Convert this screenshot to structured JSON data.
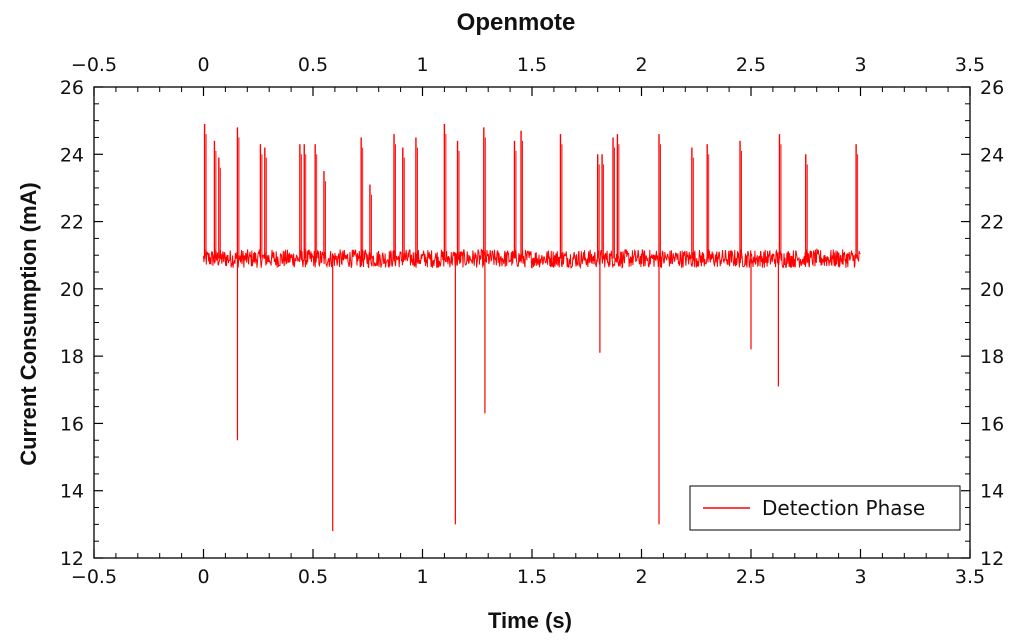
{
  "chart_data": {
    "type": "line",
    "title": "Openmote",
    "xlabel": "Time (s)",
    "ylabel": "Current Consumption (mA)",
    "xlim": [
      -0.5,
      3.5
    ],
    "ylim": [
      12,
      26
    ],
    "x_ticks": [
      -0.5,
      0,
      0.5,
      1,
      1.5,
      2,
      2.5,
      3,
      3.5
    ],
    "x_tick_labels": [
      "−0.5",
      "0",
      "0.5",
      "1",
      "1.5",
      "2",
      "2.5",
      "3",
      "3.5"
    ],
    "y_ticks": [
      12,
      14,
      16,
      18,
      20,
      22,
      24,
      26
    ],
    "y_tick_labels": [
      "12",
      "14",
      "16",
      "18",
      "20",
      "22",
      "24",
      "26"
    ],
    "grid": false,
    "legend_position": "bottom-right",
    "series": [
      {
        "name": "Detection Phase",
        "color": "#ff0000",
        "baseline": 20.9,
        "x_range": [
          0,
          3
        ],
        "peaks": [
          {
            "x": 0.005,
            "y": 24.9
          },
          {
            "x": 0.05,
            "y": 24.4
          },
          {
            "x": 0.07,
            "y": 23.9
          },
          {
            "x": 0.155,
            "y": 24.8
          },
          {
            "x": 0.26,
            "y": 24.3
          },
          {
            "x": 0.28,
            "y": 24.2
          },
          {
            "x": 0.44,
            "y": 24.3
          },
          {
            "x": 0.46,
            "y": 24.3
          },
          {
            "x": 0.51,
            "y": 24.3
          },
          {
            "x": 0.55,
            "y": 23.5
          },
          {
            "x": 0.72,
            "y": 24.5
          },
          {
            "x": 0.76,
            "y": 23.1
          },
          {
            "x": 0.87,
            "y": 24.6
          },
          {
            "x": 0.91,
            "y": 24.2
          },
          {
            "x": 0.97,
            "y": 24.5
          },
          {
            "x": 1.1,
            "y": 24.9
          },
          {
            "x": 1.16,
            "y": 24.4
          },
          {
            "x": 1.28,
            "y": 24.8
          },
          {
            "x": 1.42,
            "y": 24.4
          },
          {
            "x": 1.45,
            "y": 24.7
          },
          {
            "x": 1.63,
            "y": 24.6
          },
          {
            "x": 1.8,
            "y": 24.0
          },
          {
            "x": 1.82,
            "y": 24.0
          },
          {
            "x": 1.87,
            "y": 24.5
          },
          {
            "x": 1.89,
            "y": 24.6
          },
          {
            "x": 2.08,
            "y": 24.6
          },
          {
            "x": 2.23,
            "y": 24.2
          },
          {
            "x": 2.3,
            "y": 24.3
          },
          {
            "x": 2.45,
            "y": 24.4
          },
          {
            "x": 2.63,
            "y": 24.6
          },
          {
            "x": 2.75,
            "y": 24.0
          },
          {
            "x": 2.98,
            "y": 24.3
          }
        ],
        "dips": [
          {
            "x": 0.155,
            "y": 15.5
          },
          {
            "x": 0.59,
            "y": 12.8
          },
          {
            "x": 1.15,
            "y": 13.0
          },
          {
            "x": 1.285,
            "y": 16.3
          },
          {
            "x": 1.81,
            "y": 18.1
          },
          {
            "x": 2.08,
            "y": 13.0
          },
          {
            "x": 2.5,
            "y": 18.2
          },
          {
            "x": 2.625,
            "y": 17.1
          }
        ]
      }
    ]
  }
}
